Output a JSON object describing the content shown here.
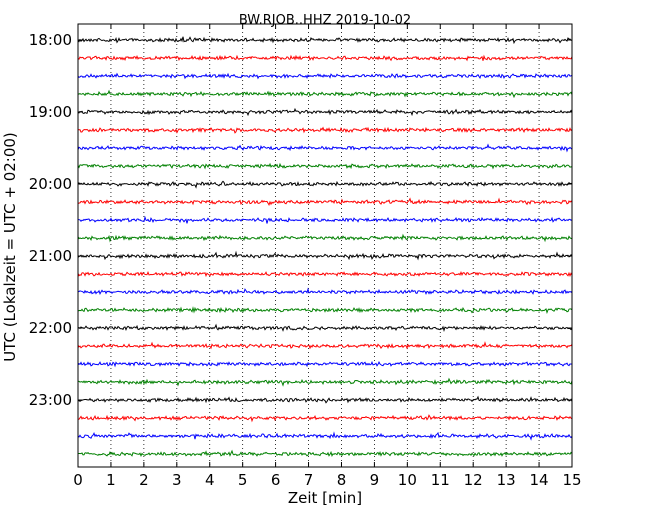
{
  "chart_data": {
    "type": "line",
    "title": "BW.RJOB..HHZ 2019-10-02",
    "xlabel": "Zeit  [min]",
    "ylabel": "UTC (Lokalzeit = UTC + 02:00)",
    "xlim": [
      0,
      15
    ],
    "x_ticks": [
      "0",
      "1",
      "2",
      "3",
      "4",
      "5",
      "6",
      "7",
      "8",
      "9",
      "10",
      "11",
      "12",
      "13",
      "14",
      "15"
    ],
    "y_ticks": [
      "18:00",
      "19:00",
      "20:00",
      "21:00",
      "22:00",
      "23:00"
    ],
    "grid": "vertical dotted",
    "trace_colors": [
      "#000000",
      "#ff0000",
      "#0000ff",
      "#008000"
    ],
    "traces_per_hour": 4,
    "trace_count": 24
  }
}
